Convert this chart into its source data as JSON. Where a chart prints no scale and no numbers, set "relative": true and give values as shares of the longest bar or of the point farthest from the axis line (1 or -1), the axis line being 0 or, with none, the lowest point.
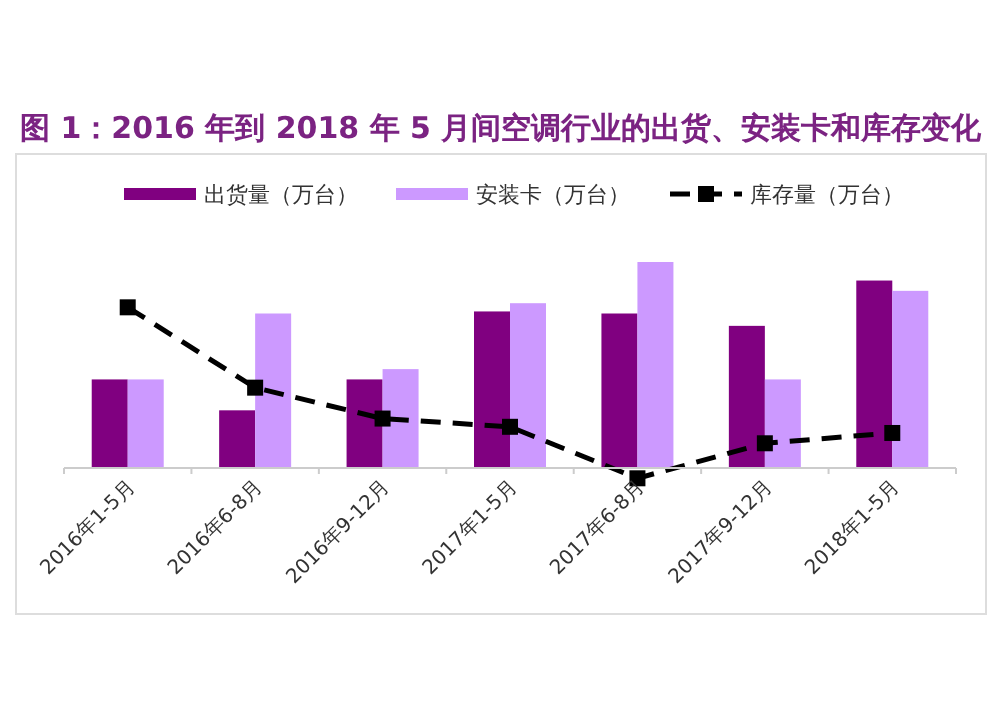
{
  "chart_data": {
    "type": "bar",
    "title": "图 1：2016 年到 2018 年 5 月间空调行业的出货、安装卡和库存变化",
    "relative": true,
    "legend": "top",
    "categories": [
      "2016年1-5月",
      "2016年6-8月",
      "2016年9-12月",
      "2017年1-5月",
      "2017年6-8月",
      "2017年9-12月",
      "2018年1-5月"
    ],
    "series": [
      {
        "name": "出货量（万台）",
        "color": "#800080",
        "values": [
          0.43,
          0.28,
          0.43,
          0.76,
          0.75,
          0.69,
          0.91
        ]
      },
      {
        "name": "安装卡（万台）",
        "color": "#cc99ff",
        "values": [
          0.43,
          0.75,
          0.48,
          0.8,
          1,
          0.43,
          0.86
        ]
      },
      {
        "name": "库存量（万台）",
        "type": "line",
        "color": "#000000",
        "marker": "square",
        "line_style": "dashed",
        "values": [
          0.78,
          0.39,
          0.24,
          0.2,
          -0.05,
          0.12,
          0.17
        ]
      }
    ]
  }
}
